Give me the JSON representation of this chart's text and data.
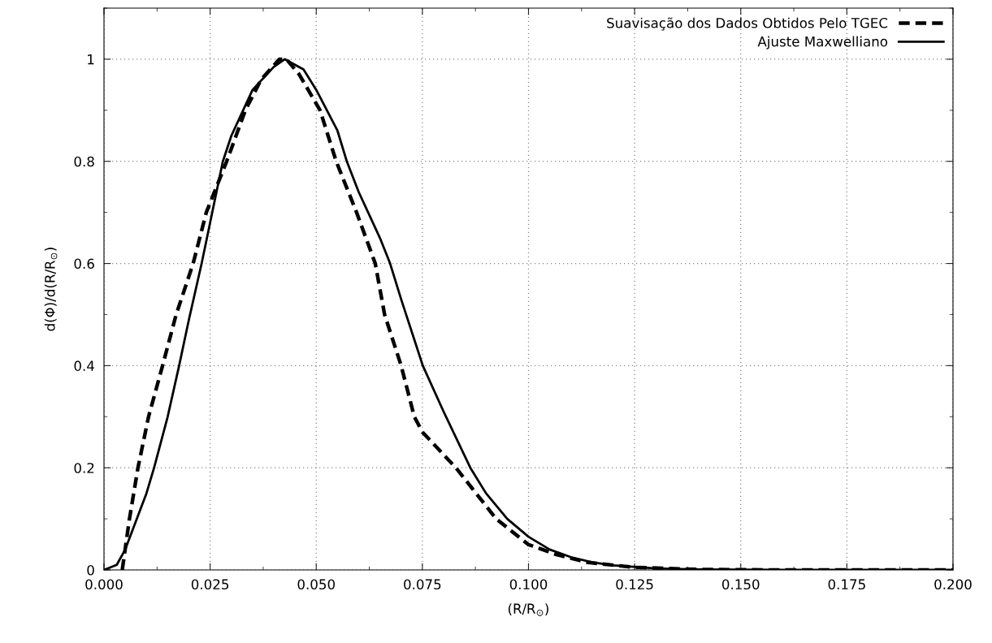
{
  "chart_data": {
    "type": "line",
    "xlabel": "(R/R$_{⊙}$)",
    "ylabel": "d(Φ)/d(R/R$_{⊙}$)",
    "xlim": [
      0,
      0.2
    ],
    "ylim": [
      0,
      1.1
    ],
    "xticks": [
      {
        "value": 0,
        "label": "0.000"
      },
      {
        "value": 0.025,
        "label": "0.025"
      },
      {
        "value": 0.05,
        "label": "0.050"
      },
      {
        "value": 0.075,
        "label": "0.075"
      },
      {
        "value": 0.1,
        "label": "0.100"
      },
      {
        "value": 0.125,
        "label": "0.125"
      },
      {
        "value": 0.15,
        "label": "0.150"
      },
      {
        "value": 0.175,
        "label": "0.175"
      },
      {
        "value": 0.2,
        "label": "0.200"
      }
    ],
    "yticks": [
      0,
      0.2,
      0.4,
      0.6,
      0.8,
      1
    ],
    "grid": true,
    "legend": "top right",
    "marker": "none",
    "series": [
      {
        "name": "Suavisação dos Dados Obtidos Pelo TGEC",
        "color": "#000000",
        "line_style": "dashed",
        "x": [
          0.0043,
          0.006,
          0.008,
          0.0105,
          0.0138,
          0.017,
          0.021,
          0.0241,
          0.0289,
          0.0333,
          0.037,
          0.0413,
          0.043,
          0.046,
          0.0509,
          0.0547,
          0.0595,
          0.0639,
          0.0661,
          0.07,
          0.0731,
          0.075,
          0.0829,
          0.0924,
          0.0999,
          0.1066,
          0.1137,
          0.125,
          0.14,
          0.16,
          0.2
        ],
        "values": [
          0,
          0.1,
          0.2,
          0.3,
          0.4,
          0.5,
          0.6,
          0.7,
          0.8,
          0.9,
          0.96,
          1.0,
          1.0,
          0.97,
          0.9,
          0.8,
          0.7,
          0.6,
          0.5,
          0.4,
          0.3,
          0.27,
          0.2,
          0.1,
          0.05,
          0.03,
          0.015,
          0.005,
          0.001,
          0,
          0
        ]
      },
      {
        "name": "Ajuste Maxwelliano",
        "color": "#000000",
        "line_style": "solid",
        "x": [
          0,
          0.003,
          0.005,
          0.01,
          0.0118,
          0.015,
          0.0177,
          0.02,
          0.023,
          0.025,
          0.028,
          0.03,
          0.035,
          0.04,
          0.0426,
          0.047,
          0.05,
          0.055,
          0.0572,
          0.06,
          0.065,
          0.0674,
          0.07,
          0.0751,
          0.08,
          0.0863,
          0.09,
          0.095,
          0.1,
          0.105,
          0.11,
          0.115,
          0.12,
          0.13,
          0.14,
          0.16,
          0.2
        ],
        "values": [
          0,
          0.01,
          0.04,
          0.15,
          0.2,
          0.3,
          0.4,
          0.49,
          0.6,
          0.68,
          0.8,
          0.85,
          0.94,
          0.985,
          1.0,
          0.98,
          0.94,
          0.86,
          0.8,
          0.74,
          0.65,
          0.6,
          0.53,
          0.4,
          0.31,
          0.2,
          0.15,
          0.1,
          0.065,
          0.04,
          0.025,
          0.015,
          0.009,
          0.003,
          0.001,
          0,
          0
        ]
      }
    ]
  }
}
